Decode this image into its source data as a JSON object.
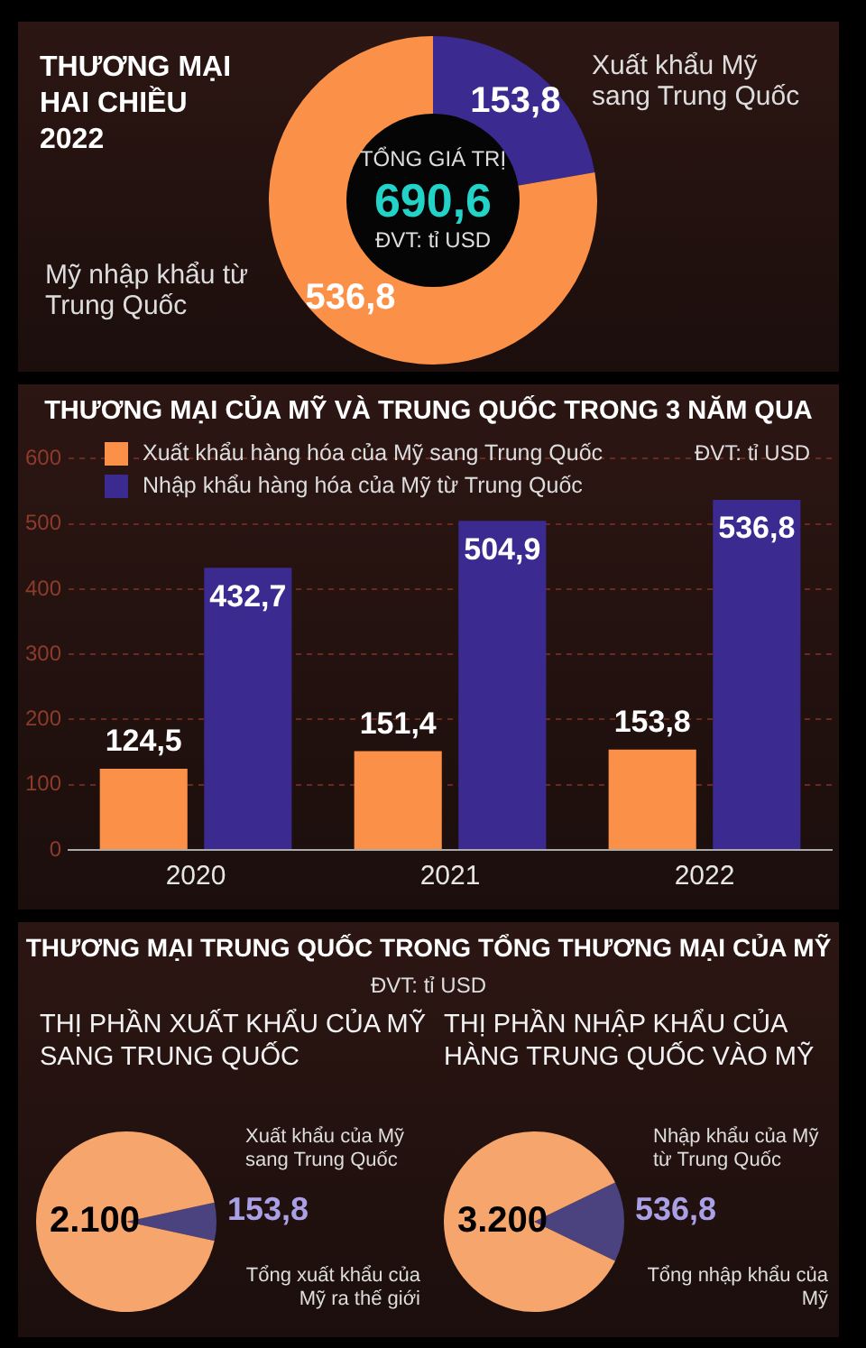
{
  "chart_data": [
    {
      "type": "donut",
      "title": "THƯƠNG MẠI HAI CHIỀU 2022",
      "categories": [
        "Xuất khẩu Mỹ sang Trung Quốc",
        "Mỹ nhập khẩu từ Trung Quốc"
      ],
      "values": [
        153.8,
        536.8
      ],
      "colors": [
        "#3b2a8f",
        "#fb9148"
      ],
      "value_labels": [
        "153,8",
        "536,8"
      ],
      "annotations": [
        "TỔNG GIÁ TRỊ",
        "690,6",
        "ĐVT: tỉ USD"
      ]
    },
    {
      "type": "bar",
      "title": "THƯƠNG MẠI CỦA MỸ VÀ TRUNG QUỐC TRONG 3 NĂM QUA",
      "categories": [
        "2020",
        "2021",
        "2022"
      ],
      "series": [
        {
          "name": "Xuất khẩu hàng hóa của Mỹ sang Trung Quốc",
          "color": "#fb9148",
          "values": [
            124.5,
            151.4,
            153.8
          ],
          "value_labels": [
            "124,5",
            "151,4",
            "153,8"
          ]
        },
        {
          "name": "Nhập khẩu hàng hóa của Mỹ từ Trung Quốc",
          "color": "#3b2a8f",
          "values": [
            432.7,
            504.9,
            536.8
          ],
          "value_labels": [
            "432,7",
            "504,9",
            "536,8"
          ]
        }
      ],
      "ylim": [
        0,
        600
      ],
      "yticks": [
        0,
        100,
        200,
        300,
        400,
        500,
        600
      ],
      "grid": "y",
      "legend": "top left",
      "annotations": [
        "ĐVT: tỉ USD"
      ]
    },
    {
      "type": "pie",
      "title": "THƯƠNG MẠI TRUNG QUỐC TRONG TỔNG THƯƠNG MẠI CỦA MỸ",
      "subtitle": "THỊ PHẦN XUẤT KHẨU CỦA MỸ SANG TRUNG QUỐC",
      "annotations": [
        "ĐVT: tỉ USD"
      ],
      "categories": [
        "Xuất khẩu của Mỹ sang Trung Quốc",
        "Tổng xuất khẩu của Mỹ ra thế giới"
      ],
      "values": [
        153.8,
        2100
      ],
      "colors": [
        "#4b4380",
        "#f6a66d"
      ],
      "value_labels": [
        "153,8",
        "2.100"
      ]
    },
    {
      "type": "pie",
      "subtitle": "THỊ PHẦN NHẬP KHẨU CỦA HÀNG TRUNG QUỐC VÀO MỸ",
      "categories": [
        "Nhập khẩu của Mỹ từ Trung Quốc",
        "Tổng nhập khẩu của Mỹ"
      ],
      "values": [
        536.8,
        3200
      ],
      "colors": [
        "#4b4380",
        "#f6a66d"
      ],
      "value_labels": [
        "536,8",
        "3.200"
      ]
    }
  ]
}
